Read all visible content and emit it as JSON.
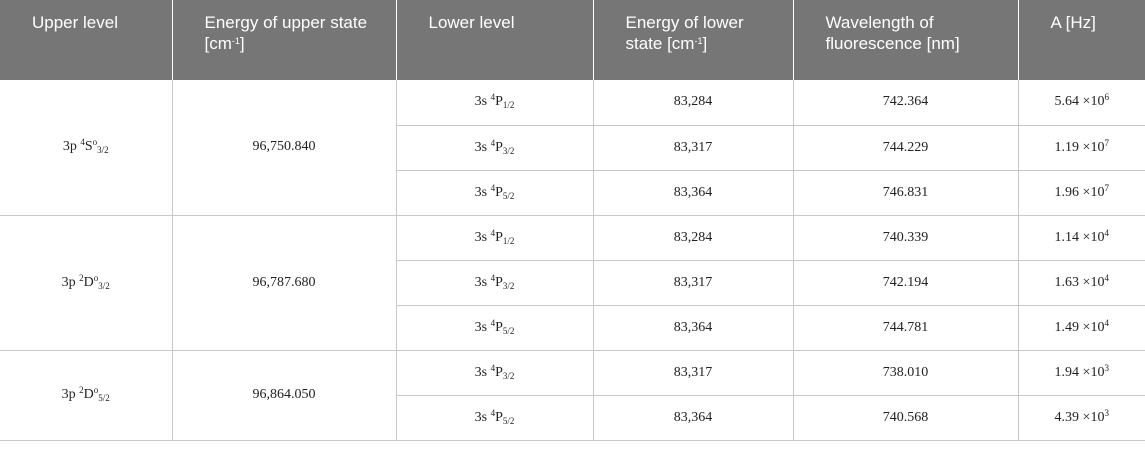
{
  "headers": {
    "upper_level": "Upper level",
    "upper_energy": "Energy of upper state [cm",
    "upper_energy_exp": "-1",
    "upper_energy_end": "]",
    "lower_level": "Lower level",
    "lower_energy": "Energy of lower state [cm",
    "lower_energy_exp": "-1",
    "lower_energy_end": "]",
    "wavelength": "Wavelength of fluorescence [nm]",
    "a_coeff": "A [Hz]"
  },
  "groups": [
    {
      "upper": {
        "base": "3p ",
        "mult": "4",
        "term": "S",
        "parity": "o",
        "j": "3/2"
      },
      "upper_energy": "96,750.840",
      "rows": [
        {
          "lower": {
            "base": "3s ",
            "mult": "4",
            "term": "P",
            "j": "1/2"
          },
          "lower_energy": "83,284",
          "wavelength": "742.364",
          "a_mant": "5.64 ×10",
          "a_exp": "6"
        },
        {
          "lower": {
            "base": "3s ",
            "mult": "4",
            "term": "P",
            "j": "3/2"
          },
          "lower_energy": "83,317",
          "wavelength": "744.229",
          "a_mant": "1.19 ×10",
          "a_exp": "7"
        },
        {
          "lower": {
            "base": "3s ",
            "mult": "4",
            "term": "P",
            "j": "5/2"
          },
          "lower_energy": "83,364",
          "wavelength": "746.831",
          "a_mant": "1.96 ×10",
          "a_exp": "7"
        }
      ]
    },
    {
      "upper": {
        "base": "3p ",
        "mult": "2",
        "term": "D",
        "parity": "o",
        "j": "3/2"
      },
      "upper_energy": "96,787.680",
      "rows": [
        {
          "lower": {
            "base": "3s ",
            "mult": "4",
            "term": "P",
            "j": "1/2"
          },
          "lower_energy": "83,284",
          "wavelength": "740.339",
          "a_mant": "1.14 ×10",
          "a_exp": "4"
        },
        {
          "lower": {
            "base": "3s ",
            "mult": "4",
            "term": "P",
            "j": "3/2"
          },
          "lower_energy": "83,317",
          "wavelength": "742.194",
          "a_mant": "1.63 ×10",
          "a_exp": "4"
        },
        {
          "lower": {
            "base": "3s ",
            "mult": "4",
            "term": "P",
            "j": "5/2"
          },
          "lower_energy": "83,364",
          "wavelength": "744.781",
          "a_mant": "1.49 ×10",
          "a_exp": "4"
        }
      ]
    },
    {
      "upper": {
        "base": "3p ",
        "mult": "2",
        "term": "D",
        "parity": "o",
        "j": "5/2"
      },
      "upper_energy": "96,864.050",
      "rows": [
        {
          "lower": {
            "base": "3s ",
            "mult": "4",
            "term": "P",
            "j": "3/2"
          },
          "lower_energy": "83,317",
          "wavelength": "738.010",
          "a_mant": "1.94 ×10",
          "a_exp": "3"
        },
        {
          "lower": {
            "base": "3s ",
            "mult": "4",
            "term": "P",
            "j": "5/2"
          },
          "lower_energy": "83,364",
          "wavelength": "740.568",
          "a_mant": "4.39 ×10",
          "a_exp": "3"
        }
      ]
    }
  ]
}
